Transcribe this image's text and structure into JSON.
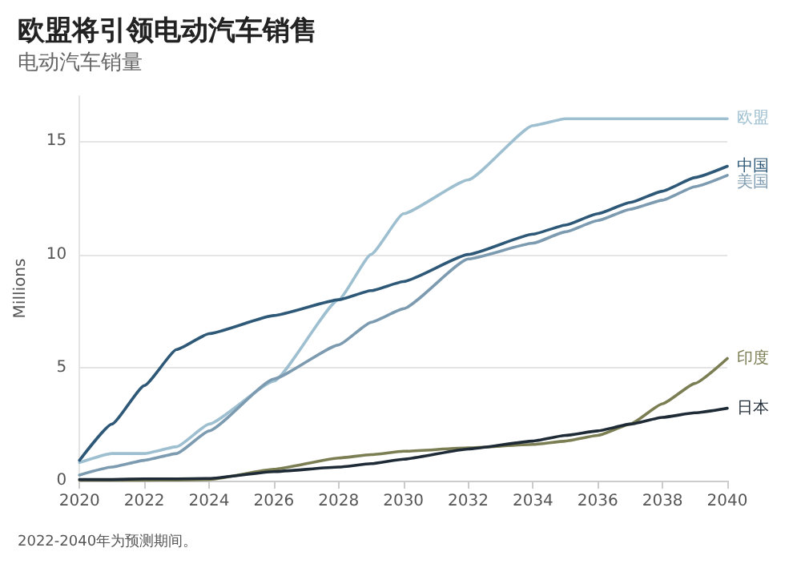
{
  "chart_data": {
    "type": "line",
    "title": "欧盟将引领电动汽车销售",
    "subtitle": "电动汽车销量",
    "ylabel": "Millions",
    "x": [
      2020,
      2021,
      2022,
      2023,
      2024,
      2026,
      2028,
      2029,
      2030,
      2032,
      2034,
      2035,
      2036,
      2037,
      2038,
      2039,
      2040
    ],
    "series": [
      {
        "name": "欧盟",
        "color": "#9dbfd0",
        "values": [
          0.8,
          1.2,
          1.2,
          1.5,
          2.5,
          4.4,
          8,
          10,
          11.8,
          13.3,
          15.7,
          16,
          16,
          16,
          16,
          16,
          16
        ]
      },
      {
        "name": "中国",
        "color": "#2e5877",
        "values": [
          0.9,
          2.5,
          4.2,
          5.8,
          6.5,
          7.3,
          8,
          8.4,
          8.8,
          10,
          10.9,
          11.3,
          11.8,
          12.3,
          12.8,
          13.4,
          13.9
        ]
      },
      {
        "name": "美国",
        "color": "#7d9bb0",
        "values": [
          0.25,
          0.6,
          0.9,
          1.2,
          2.2,
          4.5,
          6,
          7,
          7.6,
          9.8,
          10.5,
          11,
          11.5,
          12,
          12.4,
          13,
          13.5
        ]
      },
      {
        "name": "印度",
        "color": "#7b7d52",
        "values": [
          0.02,
          0.02,
          0.02,
          0.03,
          0.05,
          0.5,
          1,
          1.15,
          1.3,
          1.45,
          1.6,
          1.75,
          2,
          2.5,
          3.4,
          4.3,
          5.4
        ]
      },
      {
        "name": "日本",
        "color": "#1e2a35",
        "values": [
          0.05,
          0.05,
          0.08,
          0.08,
          0.1,
          0.4,
          0.6,
          0.75,
          0.95,
          1.4,
          1.75,
          2,
          2.2,
          2.5,
          2.8,
          3,
          3.2
        ]
      }
    ],
    "xlim": [
      2020,
      2040
    ],
    "xticks": [
      2020,
      2022,
      2024,
      2026,
      2028,
      2030,
      2032,
      2034,
      2036,
      2038,
      2040
    ],
    "ylim": [
      0,
      17
    ],
    "yticks": [
      0,
      5,
      10,
      15
    ],
    "grid": "y",
    "legend": false,
    "marker": "none",
    "line_style": "solid",
    "annotations": [
      "2022-2040年为预测期间。"
    ]
  }
}
